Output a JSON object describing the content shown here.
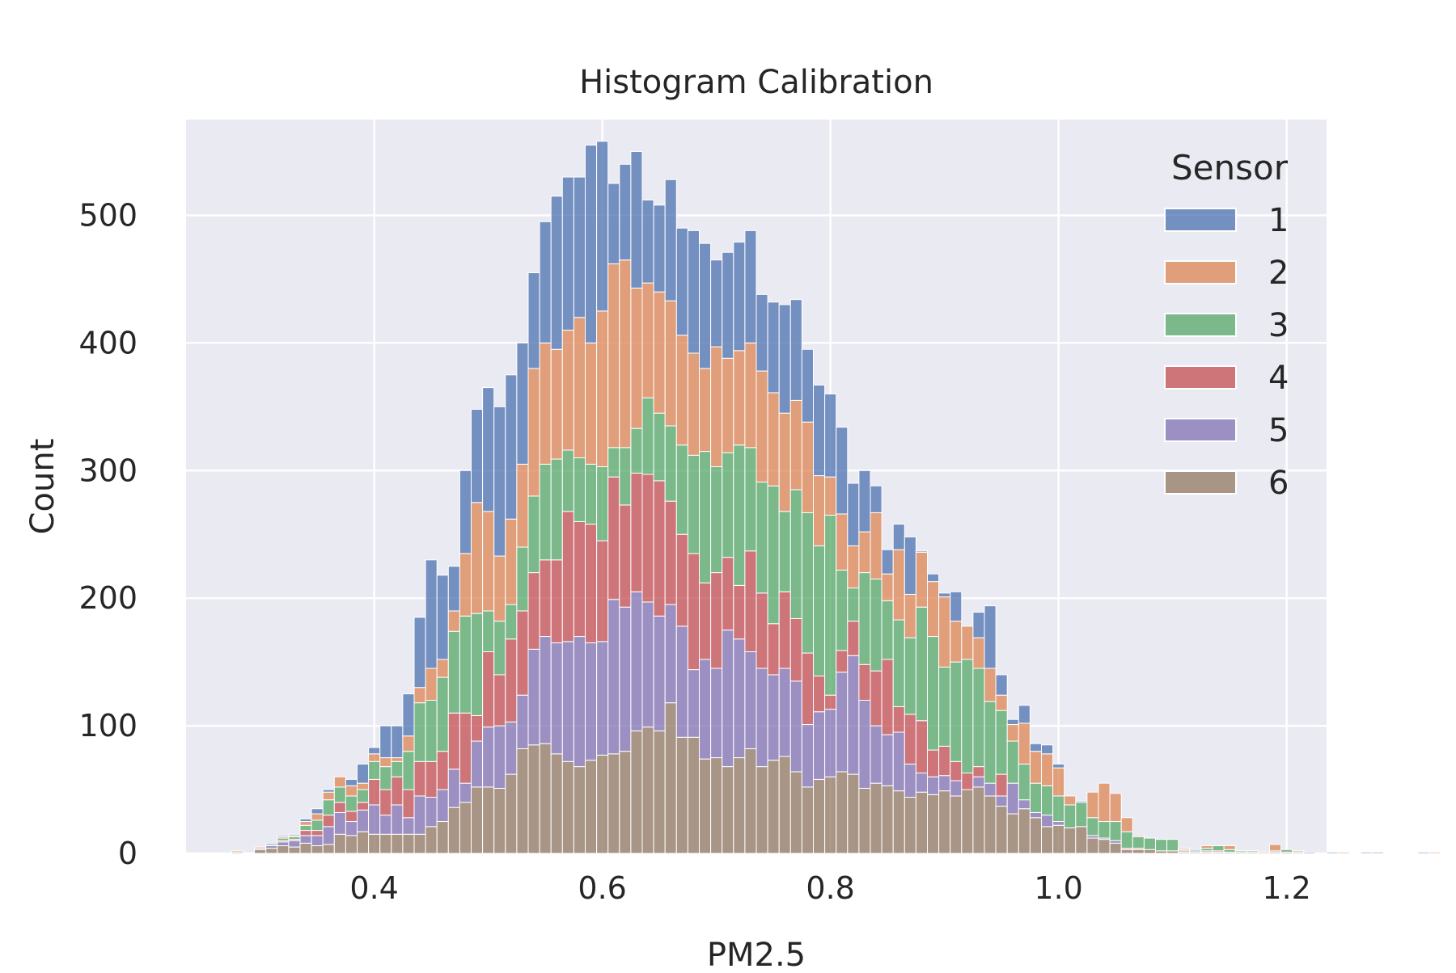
{
  "chart_data": {
    "type": "bar",
    "subtype": "stacked-histogram",
    "title": "Histogram Calibration",
    "xlabel": "PM2.5",
    "ylabel": "Count",
    "xlim": [
      0.235,
      1.235
    ],
    "ylim": [
      0,
      575
    ],
    "xticks": [
      0.4,
      0.6,
      0.8,
      1.0,
      1.2
    ],
    "xtick_labels": [
      "0.4",
      "0.6",
      "0.8",
      "1.0",
      "1.2"
    ],
    "yticks": [
      0,
      100,
      200,
      300,
      400,
      500
    ],
    "ytick_labels": [
      "0",
      "100",
      "200",
      "300",
      "400",
      "500"
    ],
    "grid": true,
    "legend": {
      "title": "Sensor",
      "placement": "upper-right"
    },
    "background": "#eaeaf2",
    "series": [
      {
        "name": "1",
        "color": "#4c72b0"
      },
      {
        "name": "2",
        "color": "#dd8452"
      },
      {
        "name": "3",
        "color": "#55a868"
      },
      {
        "name": "4",
        "color": "#c44e52"
      },
      {
        "name": "5",
        "color": "#8172b3"
      },
      {
        "name": "6",
        "color": "#937860"
      }
    ],
    "bin_start": 0.275,
    "bin_width": 0.01,
    "bins_note": "each entry: cumulative stack heights (counts) for sensors 6,5,4,3,2,1 (bottom to top)",
    "bins": [
      [
        1,
        1,
        1,
        1,
        2,
        2
      ],
      [
        0,
        0,
        0,
        0,
        0,
        0
      ],
      [
        3,
        4,
        4,
        4,
        5,
        5
      ],
      [
        4,
        6,
        6,
        7,
        7,
        8
      ],
      [
        6,
        9,
        10,
        12,
        13,
        14
      ],
      [
        5,
        10,
        11,
        13,
        14,
        15
      ],
      [
        8,
        14,
        18,
        22,
        25,
        27
      ],
      [
        6,
        14,
        18,
        26,
        31,
        35
      ],
      [
        7,
        21,
        30,
        42,
        48,
        50
      ],
      [
        15,
        32,
        40,
        52,
        60,
        60
      ],
      [
        14,
        25,
        33,
        45,
        53,
        58
      ],
      [
        17,
        34,
        40,
        50,
        55,
        70
      ],
      [
        15,
        38,
        58,
        72,
        78,
        83
      ],
      [
        15,
        30,
        50,
        68,
        75,
        100
      ],
      [
        15,
        38,
        60,
        72,
        75,
        100
      ],
      [
        15,
        28,
        50,
        80,
        92,
        125
      ],
      [
        15,
        45,
        72,
        118,
        130,
        185
      ],
      [
        21,
        44,
        72,
        120,
        145,
        230
      ],
      [
        25,
        50,
        80,
        138,
        152,
        218
      ],
      [
        36,
        66,
        110,
        174,
        190,
        225
      ],
      [
        40,
        55,
        110,
        186,
        235,
        300
      ],
      [
        52,
        88,
        108,
        188,
        275,
        348
      ],
      [
        52,
        99,
        158,
        190,
        268,
        365
      ],
      [
        51,
        100,
        140,
        182,
        233,
        350
      ],
      [
        62,
        103,
        168,
        195,
        262,
        375
      ],
      [
        82,
        124,
        190,
        240,
        305,
        400
      ],
      [
        85,
        160,
        220,
        280,
        380,
        455
      ],
      [
        86,
        170,
        230,
        305,
        400,
        495
      ],
      [
        78,
        165,
        230,
        309,
        395,
        515
      ],
      [
        72,
        166,
        268,
        316,
        410,
        530
      ],
      [
        68,
        170,
        260,
        310,
        420,
        530
      ],
      [
        73,
        165,
        258,
        305,
        400,
        555
      ],
      [
        77,
        166,
        245,
        303,
        425,
        558
      ],
      [
        78,
        199,
        295,
        318,
        462,
        525
      ],
      [
        80,
        193,
        273,
        318,
        465,
        540
      ],
      [
        96,
        205,
        298,
        333,
        443,
        550
      ],
      [
        99,
        197,
        297,
        357,
        447,
        512
      ],
      [
        96,
        186,
        292,
        345,
        440,
        508
      ],
      [
        118,
        195,
        276,
        335,
        433,
        528
      ],
      [
        91,
        178,
        250,
        320,
        406,
        490
      ],
      [
        91,
        144,
        235,
        312,
        392,
        488
      ],
      [
        74,
        152,
        212,
        315,
        380,
        478
      ],
      [
        75,
        145,
        220,
        303,
        397,
        465
      ],
      [
        68,
        175,
        232,
        314,
        388,
        471
      ],
      [
        75,
        168,
        210,
        320,
        394,
        479
      ],
      [
        82,
        158,
        237,
        318,
        400,
        488
      ],
      [
        68,
        145,
        204,
        291,
        378,
        438
      ],
      [
        73,
        140,
        180,
        288,
        361,
        432
      ],
      [
        76,
        145,
        205,
        268,
        345,
        430
      ],
      [
        64,
        135,
        184,
        285,
        355,
        434
      ],
      [
        52,
        101,
        157,
        267,
        338,
        395
      ],
      [
        58,
        111,
        139,
        241,
        296,
        367
      ],
      [
        60,
        113,
        124,
        265,
        295,
        360
      ],
      [
        64,
        142,
        159,
        222,
        266,
        334
      ],
      [
        62,
        155,
        182,
        208,
        241,
        290
      ],
      [
        51,
        120,
        148,
        220,
        252,
        300
      ],
      [
        55,
        100,
        143,
        215,
        267,
        288
      ],
      [
        53,
        93,
        152,
        198,
        219,
        238
      ],
      [
        49,
        95,
        115,
        183,
        238,
        258
      ],
      [
        44,
        70,
        109,
        169,
        203,
        248
      ],
      [
        48,
        63,
        104,
        193,
        236,
        237
      ],
      [
        46,
        60,
        81,
        170,
        213,
        219
      ],
      [
        49,
        61,
        84,
        146,
        201,
        204
      ],
      [
        45,
        57,
        72,
        150,
        182,
        205
      ],
      [
        50,
        50,
        63,
        152,
        178,
        162
      ],
      [
        52,
        60,
        68,
        145,
        169,
        189
      ],
      [
        45,
        55,
        48,
        119,
        145,
        194
      ],
      [
        37,
        45,
        62,
        112,
        124,
        140
      ],
      [
        31,
        55,
        50,
        88,
        101,
        105
      ],
      [
        35,
        42,
        30,
        70,
        102,
        116
      ],
      [
        28,
        32,
        32,
        55,
        80,
        86
      ],
      [
        21,
        30,
        25,
        53,
        78,
        85
      ],
      [
        22,
        25,
        19,
        45,
        67,
        70
      ],
      [
        20,
        15,
        17,
        38,
        45,
        45
      ],
      [
        21,
        18,
        18,
        40,
        40,
        41
      ],
      [
        12,
        14,
        10,
        28,
        48,
        48
      ],
      [
        11,
        12,
        12,
        25,
        55,
        55
      ],
      [
        8,
        10,
        8,
        25,
        47,
        47
      ],
      [
        3,
        3,
        4,
        17,
        28,
        28
      ],
      [
        3,
        3,
        4,
        13,
        14,
        14
      ],
      [
        3,
        3,
        3,
        12,
        12,
        12
      ],
      [
        2,
        2,
        2,
        11,
        11,
        11
      ],
      [
        2,
        2,
        2,
        11,
        11,
        11
      ],
      [
        1,
        1,
        2,
        3,
        4,
        4
      ],
      [
        1,
        1,
        1,
        2,
        2,
        3
      ],
      [
        1,
        1,
        2,
        4,
        6,
        6
      ],
      [
        1,
        1,
        2,
        6,
        6,
        6
      ],
      [
        1,
        1,
        1,
        3,
        6,
        6
      ],
      [
        1,
        1,
        1,
        2,
        2,
        2
      ],
      [
        1,
        1,
        1,
        2,
        2,
        2
      ],
      [
        0,
        0,
        0,
        0,
        1,
        1
      ],
      [
        0,
        0,
        1,
        2,
        7,
        7
      ],
      [
        0,
        0,
        1,
        3,
        3,
        3
      ],
      [
        0,
        0,
        0,
        1,
        2,
        2
      ],
      [
        0,
        0,
        0,
        0,
        0,
        1
      ],
      [
        0,
        0,
        0,
        0,
        0,
        0
      ],
      [
        0,
        0,
        0,
        0,
        0,
        1
      ],
      [
        0,
        0,
        0,
        0,
        1,
        1
      ],
      [
        0,
        0,
        0,
        0,
        0,
        0
      ],
      [
        0,
        0,
        0,
        0,
        0,
        1
      ],
      [
        0,
        0,
        0,
        0,
        0,
        1
      ],
      [
        0,
        0,
        0,
        0,
        0,
        0
      ],
      [
        0,
        0,
        0,
        0,
        0,
        0
      ],
      [
        0,
        0,
        0,
        0,
        0,
        0
      ],
      [
        0,
        0,
        0,
        0,
        0,
        1
      ],
      [
        0,
        0,
        0,
        0,
        1,
        1
      ]
    ]
  }
}
